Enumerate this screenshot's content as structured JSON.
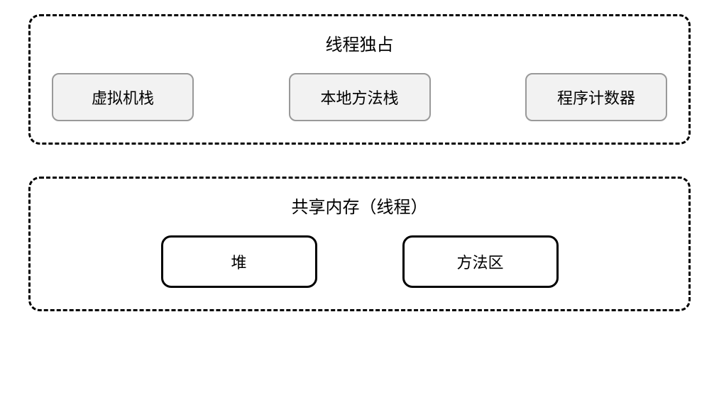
{
  "diagram": {
    "type": "block-diagram",
    "background_color": "#ffffff",
    "text_color": "#000000",
    "groups": [
      {
        "title": "线程独占",
        "border_style": "dashed",
        "border_color": "#000000",
        "border_radius": 16,
        "items": [
          {
            "label": "虚拟机栈",
            "bg_color": "#f2f2f2",
            "border_color": "#999999"
          },
          {
            "label": "本地方法栈",
            "bg_color": "#f2f2f2",
            "border_color": "#999999"
          },
          {
            "label": "程序计数器",
            "bg_color": "#f2f2f2",
            "border_color": "#999999"
          }
        ]
      },
      {
        "title": "共享内存（线程）",
        "border_style": "dashed",
        "border_color": "#000000",
        "border_radius": 16,
        "items": [
          {
            "label": "堆",
            "bg_color": "#ffffff",
            "border_color": "#000000"
          },
          {
            "label": "方法区",
            "bg_color": "#ffffff",
            "border_color": "#000000"
          }
        ]
      }
    ],
    "title_fontsize": 24,
    "item_fontsize": 22
  }
}
